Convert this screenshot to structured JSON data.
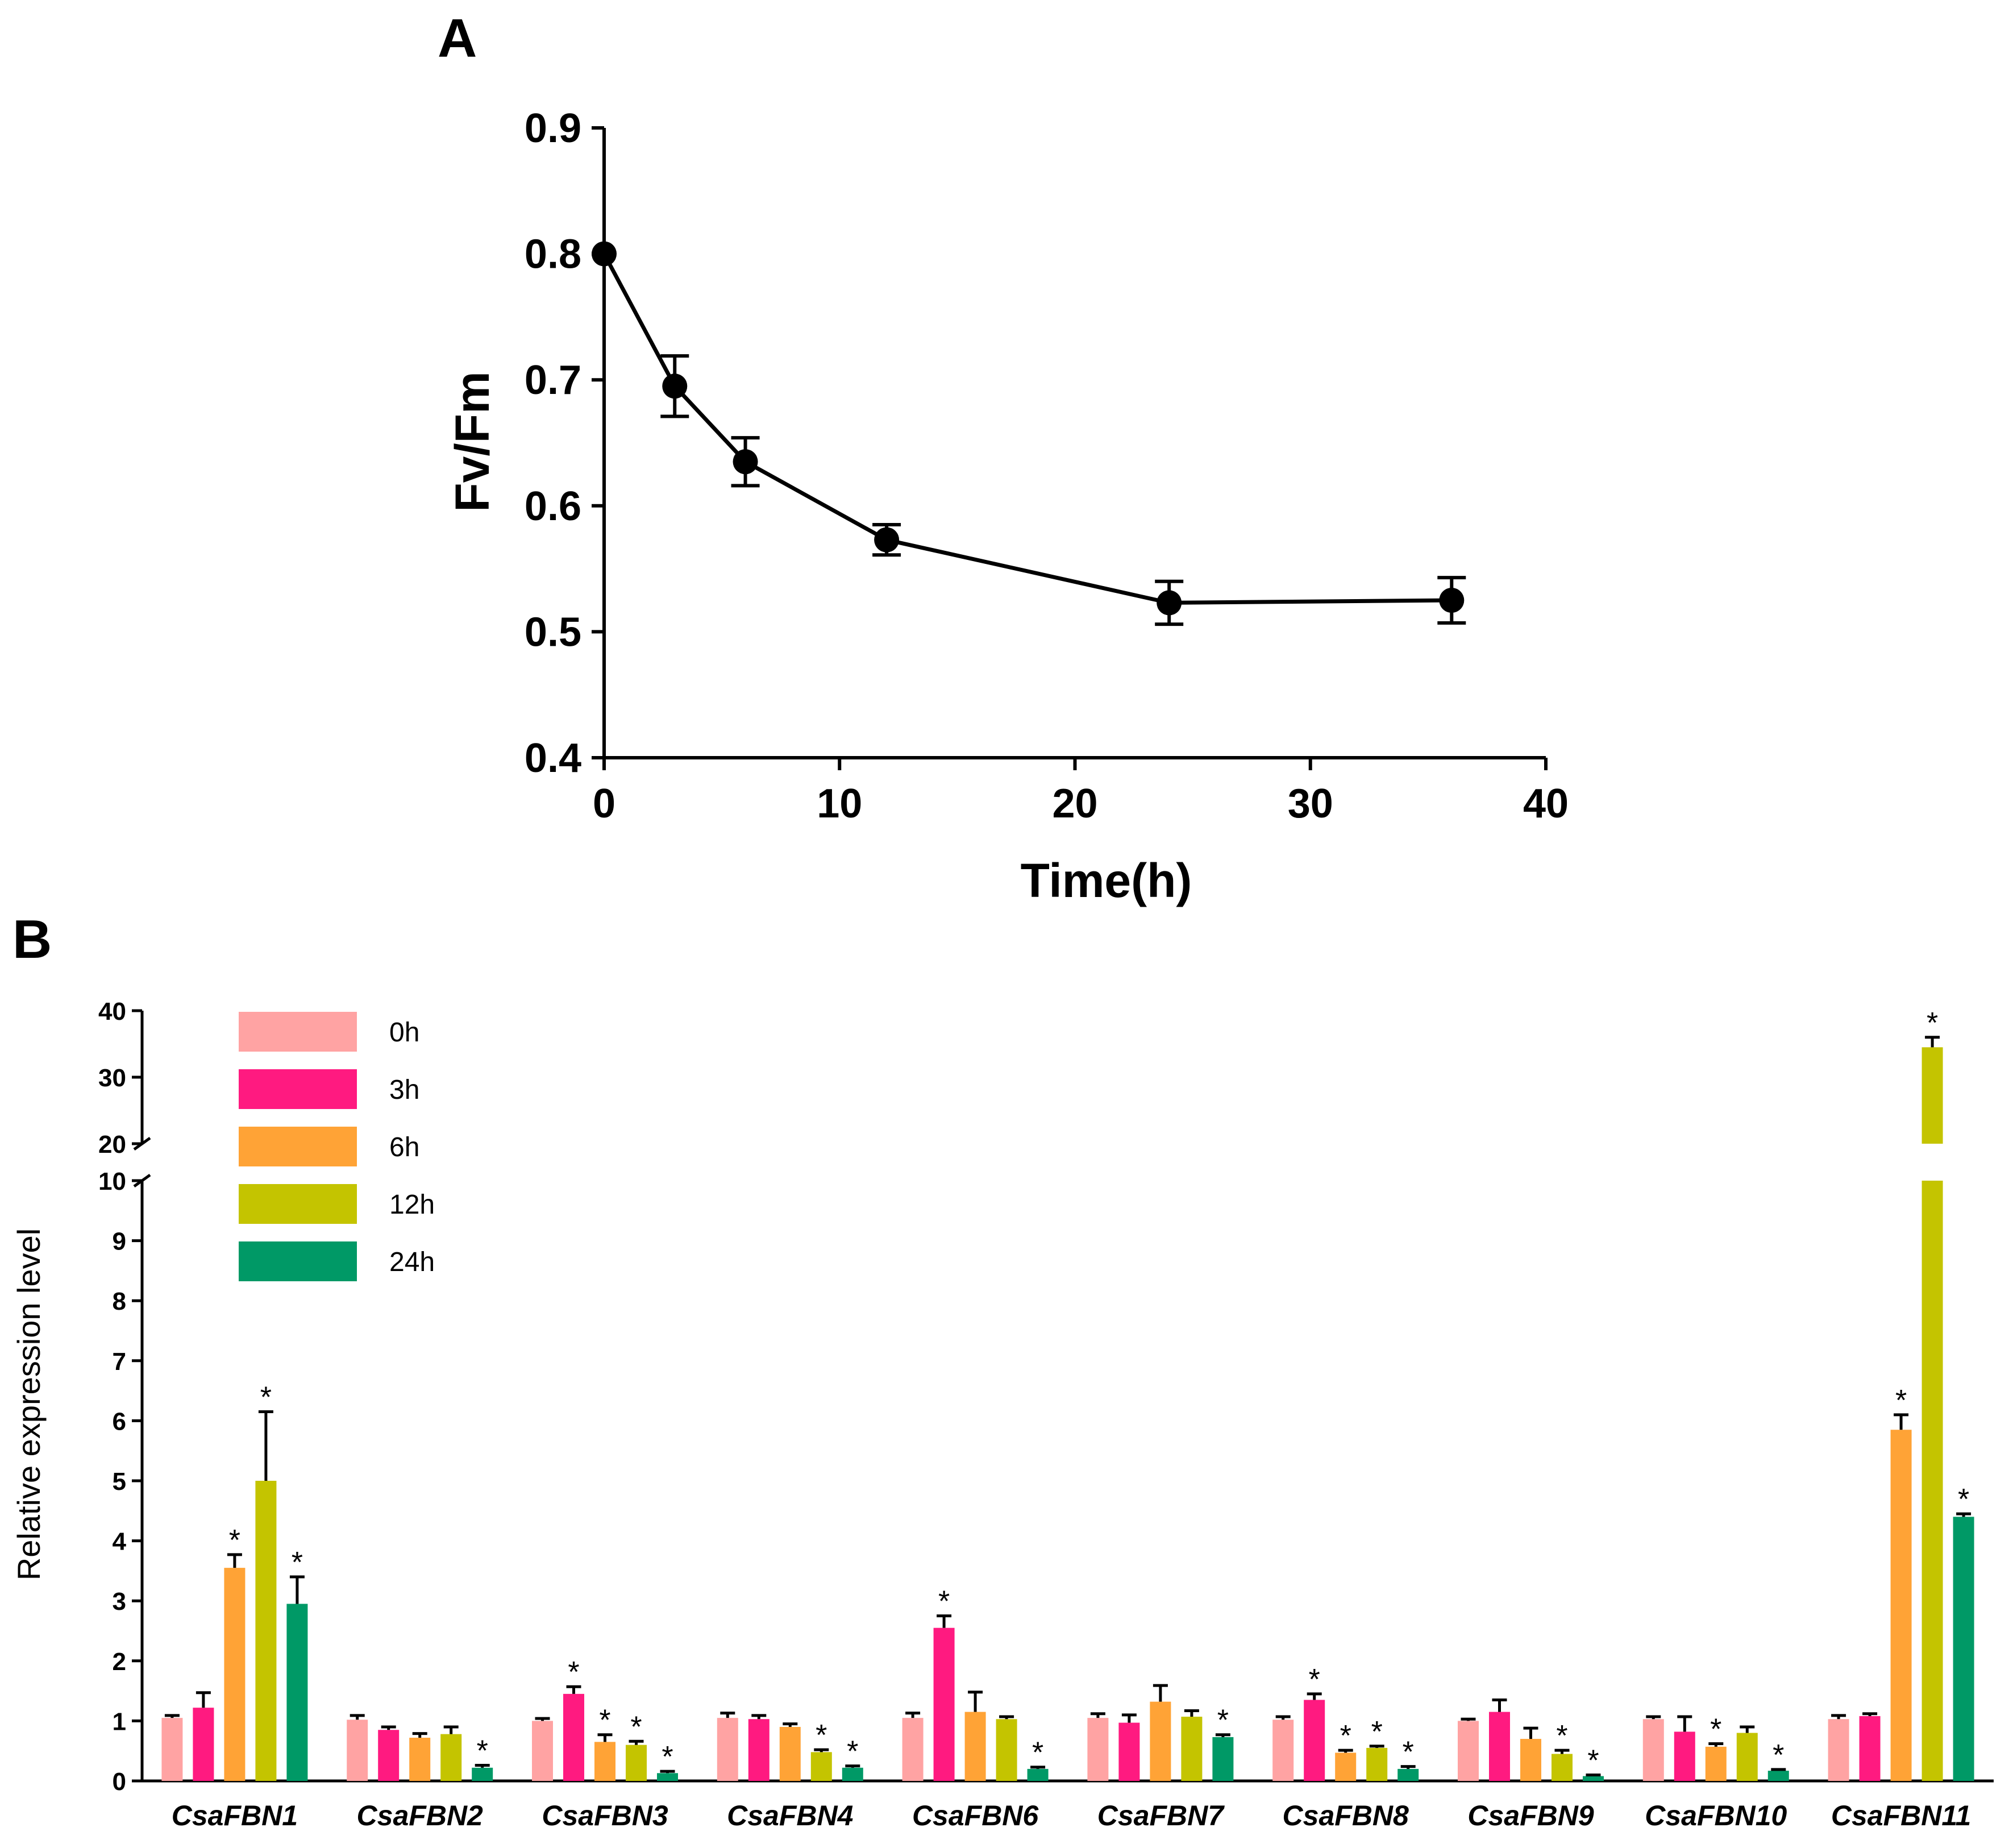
{
  "panel_a_letter": "A",
  "panel_b_letter": "B",
  "chart_data": [
    {
      "type": "line",
      "panel": "A",
      "xlabel": "Time(h)",
      "ylabel": "Fv/Fm",
      "xlim": [
        0,
        40
      ],
      "ylim": [
        0.4,
        0.9
      ],
      "xticks": [
        "0",
        "10",
        "20",
        "30",
        "40"
      ],
      "yticks": [
        "0.4",
        "0.5",
        "0.6",
        "0.7",
        "0.8",
        "0.9"
      ],
      "grid": false,
      "series": [
        {
          "x": [
            0,
            3,
            6,
            12,
            24,
            36
          ],
          "y": [
            0.8,
            0.695,
            0.635,
            0.573,
            0.523,
            0.525
          ],
          "error": [
            0.0,
            0.024,
            0.019,
            0.012,
            0.017,
            0.018
          ],
          "color": "#000000"
        }
      ]
    },
    {
      "type": "bar",
      "panel": "B",
      "ylabel": "Relative expression level",
      "categories": [
        "CsaFBN1",
        "CsaFBN2",
        "CsaFBN3",
        "CsaFBN4",
        "CsaFBN6",
        "CsaFBN7",
        "CsaFBN8",
        "CsaFBN9",
        "CsaFBN10",
        "CsaFBN11"
      ],
      "y_lower_ticks": [
        "0",
        "1",
        "2",
        "3",
        "4",
        "5",
        "6",
        "7",
        "8",
        "9",
        "10"
      ],
      "y_upper_ticks": [
        "20",
        "30",
        "40"
      ],
      "axis_break": [
        10,
        20
      ],
      "legend_position": "top-left",
      "significance_marker": "*",
      "series": [
        {
          "name": "0h",
          "color": "#ffa3a3",
          "values": [
            1.05,
            1.02,
            1.0,
            1.05,
            1.05,
            1.05,
            1.02,
            1.0,
            1.03,
            1.03
          ],
          "errors": [
            0.04,
            0.07,
            0.04,
            0.08,
            0.08,
            0.07,
            0.05,
            0.03,
            0.04,
            0.06
          ],
          "significant": [
            false,
            false,
            false,
            false,
            false,
            false,
            false,
            false,
            false,
            false
          ]
        },
        {
          "name": "3h",
          "color": "#ff1a80",
          "values": [
            1.22,
            0.85,
            1.45,
            1.03,
            2.55,
            0.97,
            1.35,
            1.15,
            0.82,
            1.08
          ],
          "errors": [
            0.25,
            0.05,
            0.12,
            0.06,
            0.2,
            0.13,
            0.1,
            0.2,
            0.25,
            0.04
          ],
          "significant": [
            false,
            false,
            true,
            false,
            true,
            false,
            true,
            false,
            false,
            false
          ]
        },
        {
          "name": "6h",
          "color": "#ffa336",
          "values": [
            3.55,
            0.72,
            0.65,
            0.9,
            1.15,
            1.32,
            0.47,
            0.7,
            0.57,
            5.85
          ],
          "errors": [
            0.22,
            0.07,
            0.12,
            0.05,
            0.33,
            0.27,
            0.04,
            0.18,
            0.05,
            0.25
          ],
          "significant": [
            true,
            false,
            true,
            false,
            false,
            false,
            true,
            false,
            true,
            true
          ]
        },
        {
          "name": "12h",
          "color": "#c4c400",
          "values": [
            5.0,
            0.78,
            0.6,
            0.48,
            1.03,
            1.07,
            0.55,
            0.45,
            0.8,
            34.5
          ],
          "errors": [
            1.15,
            0.12,
            0.06,
            0.04,
            0.04,
            0.1,
            0.03,
            0.06,
            0.1,
            1.5
          ],
          "significant": [
            true,
            false,
            true,
            true,
            false,
            false,
            true,
            true,
            false,
            true
          ]
        },
        {
          "name": "24h",
          "color": "#009966",
          "values": [
            2.95,
            0.22,
            0.13,
            0.22,
            0.2,
            0.73,
            0.2,
            0.08,
            0.17,
            4.4
          ],
          "errors": [
            0.45,
            0.04,
            0.03,
            0.03,
            0.03,
            0.04,
            0.04,
            0.02,
            0.02,
            0.05
          ],
          "significant": [
            true,
            true,
            true,
            true,
            true,
            true,
            true,
            true,
            true,
            true
          ]
        }
      ]
    }
  ]
}
